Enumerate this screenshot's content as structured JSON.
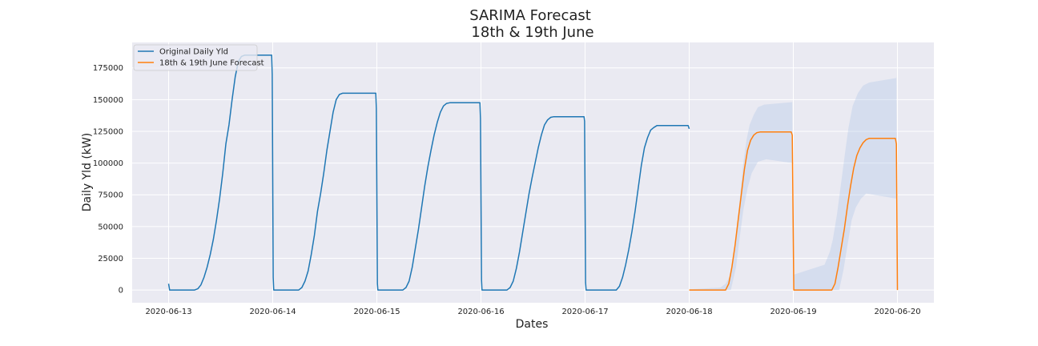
{
  "chart_data": {
    "type": "line",
    "title": [
      "SARIMA Forecast",
      "18th & 19th June"
    ],
    "xlabel": "Dates",
    "ylabel": "Daily Yld (kW)",
    "x_range_days": [
      -0.35,
      7.35
    ],
    "ylim": [
      -10000,
      195000
    ],
    "grid": true,
    "legend_position": "top-left",
    "x_ticks": [
      {
        "day": 0,
        "label": "2020-06-13"
      },
      {
        "day": 1,
        "label": "2020-06-14"
      },
      {
        "day": 2,
        "label": "2020-06-15"
      },
      {
        "day": 3,
        "label": "2020-06-16"
      },
      {
        "day": 4,
        "label": "2020-06-17"
      },
      {
        "day": 5,
        "label": "2020-06-18"
      },
      {
        "day": 6,
        "label": "2020-06-19"
      },
      {
        "day": 7,
        "label": "2020-06-20"
      }
    ],
    "y_ticks": [
      0,
      25000,
      50000,
      75000,
      100000,
      125000,
      150000,
      175000
    ],
    "y_tick_labels": [
      "0",
      "25000",
      "50000",
      "75000",
      "100000",
      "125000",
      "150000",
      "175000"
    ],
    "series": [
      {
        "name": "Original Daily Yld",
        "color": "#1f77b4",
        "points": [
          [
            0,
            5000
          ],
          [
            0.01,
            0
          ],
          [
            0.25,
            0
          ],
          [
            0.28,
            1000
          ],
          [
            0.31,
            4000
          ],
          [
            0.34,
            10000
          ],
          [
            0.37,
            18000
          ],
          [
            0.4,
            28000
          ],
          [
            0.43,
            40000
          ],
          [
            0.46,
            55000
          ],
          [
            0.49,
            72000
          ],
          [
            0.52,
            92000
          ],
          [
            0.55,
            115000
          ],
          [
            0.58,
            130000
          ],
          [
            0.61,
            150000
          ],
          [
            0.64,
            168000
          ],
          [
            0.67,
            180000
          ],
          [
            0.7,
            184000
          ],
          [
            0.73,
            185000
          ],
          [
            0.99,
            185000
          ],
          [
            0.995,
            170000
          ],
          [
            1.005,
            10000
          ],
          [
            1.01,
            0
          ],
          [
            1.25,
            0
          ],
          [
            1.28,
            2000
          ],
          [
            1.31,
            7000
          ],
          [
            1.34,
            15000
          ],
          [
            1.37,
            28000
          ],
          [
            1.4,
            43000
          ],
          [
            1.43,
            62000
          ],
          [
            1.46,
            76000
          ],
          [
            1.49,
            92000
          ],
          [
            1.52,
            110000
          ],
          [
            1.55,
            125000
          ],
          [
            1.58,
            140000
          ],
          [
            1.61,
            150000
          ],
          [
            1.64,
            154000
          ],
          [
            1.67,
            155000
          ],
          [
            1.99,
            155000
          ],
          [
            1.995,
            143000
          ],
          [
            2.005,
            5000
          ],
          [
            2.01,
            0
          ],
          [
            2.25,
            0
          ],
          [
            2.28,
            2000
          ],
          [
            2.31,
            7000
          ],
          [
            2.34,
            18000
          ],
          [
            2.37,
            33000
          ],
          [
            2.4,
            48000
          ],
          [
            2.43,
            65000
          ],
          [
            2.46,
            82000
          ],
          [
            2.49,
            97000
          ],
          [
            2.52,
            110000
          ],
          [
            2.55,
            122000
          ],
          [
            2.58,
            132000
          ],
          [
            2.61,
            140000
          ],
          [
            2.64,
            145000
          ],
          [
            2.67,
            147000
          ],
          [
            2.7,
            147500
          ],
          [
            2.99,
            147500
          ],
          [
            2.995,
            135000
          ],
          [
            3.005,
            8000
          ],
          [
            3.01,
            0
          ],
          [
            3.25,
            0
          ],
          [
            3.28,
            2000
          ],
          [
            3.31,
            7000
          ],
          [
            3.34,
            17000
          ],
          [
            3.37,
            30000
          ],
          [
            3.4,
            45000
          ],
          [
            3.43,
            60000
          ],
          [
            3.46,
            75000
          ],
          [
            3.49,
            88000
          ],
          [
            3.52,
            100000
          ],
          [
            3.55,
            112000
          ],
          [
            3.58,
            122000
          ],
          [
            3.61,
            130000
          ],
          [
            3.64,
            134000
          ],
          [
            3.67,
            136000
          ],
          [
            3.7,
            136500
          ],
          [
            3.99,
            136500
          ],
          [
            3.995,
            133000
          ],
          [
            4.005,
            6000
          ],
          [
            4.01,
            0
          ],
          [
            4.3,
            0
          ],
          [
            4.33,
            3000
          ],
          [
            4.36,
            10000
          ],
          [
            4.39,
            20000
          ],
          [
            4.42,
            32000
          ],
          [
            4.45,
            46000
          ],
          [
            4.48,
            62000
          ],
          [
            4.51,
            80000
          ],
          [
            4.54,
            98000
          ],
          [
            4.57,
            112000
          ],
          [
            4.6,
            120000
          ],
          [
            4.63,
            126000
          ],
          [
            4.66,
            128000
          ],
          [
            4.69,
            129500
          ],
          [
            4.99,
            129500
          ],
          [
            5.0,
            127000
          ]
        ]
      },
      {
        "name": "18th & 19th June Forecast",
        "color": "#ff7f0e",
        "points": [
          [
            5.0,
            0
          ],
          [
            5.35,
            0
          ],
          [
            5.38,
            5000
          ],
          [
            5.41,
            18000
          ],
          [
            5.44,
            35000
          ],
          [
            5.47,
            55000
          ],
          [
            5.5,
            75000
          ],
          [
            5.53,
            95000
          ],
          [
            5.56,
            110000
          ],
          [
            5.59,
            118000
          ],
          [
            5.62,
            122000
          ],
          [
            5.65,
            124000
          ],
          [
            5.68,
            124500
          ],
          [
            5.98,
            124500
          ],
          [
            5.99,
            122000
          ],
          [
            6.005,
            0
          ],
          [
            6.37,
            0
          ],
          [
            6.4,
            5000
          ],
          [
            6.43,
            18000
          ],
          [
            6.46,
            33000
          ],
          [
            6.49,
            48000
          ],
          [
            6.52,
            66000
          ],
          [
            6.55,
            82000
          ],
          [
            6.58,
            96000
          ],
          [
            6.61,
            106000
          ],
          [
            6.64,
            112000
          ],
          [
            6.67,
            116000
          ],
          [
            6.7,
            118500
          ],
          [
            6.73,
            119500
          ],
          [
            6.98,
            119500
          ],
          [
            6.99,
            115000
          ],
          [
            7.0,
            0
          ]
        ]
      }
    ],
    "confidence_band": {
      "color": "#aec7e8",
      "upper": [
        [
          5.0,
          500
        ],
        [
          5.3,
          2000
        ],
        [
          5.35,
          5000
        ],
        [
          5.4,
          12000
        ],
        [
          5.43,
          30000
        ],
        [
          5.46,
          52000
        ],
        [
          5.49,
          75000
        ],
        [
          5.52,
          100000
        ],
        [
          5.55,
          118000
        ],
        [
          5.58,
          130000
        ],
        [
          5.62,
          138000
        ],
        [
          5.66,
          144000
        ],
        [
          5.72,
          146000
        ],
        [
          5.99,
          148000
        ],
        [
          6.0,
          12000
        ],
        [
          6.3,
          20000
        ],
        [
          6.35,
          30000
        ],
        [
          6.38,
          40000
        ],
        [
          6.42,
          60000
        ],
        [
          6.46,
          85000
        ],
        [
          6.5,
          110000
        ],
        [
          6.53,
          128000
        ],
        [
          6.57,
          145000
        ],
        [
          6.62,
          155000
        ],
        [
          6.67,
          161000
        ],
        [
          6.73,
          163500
        ],
        [
          6.99,
          167000
        ],
        [
          7.0,
          0
        ]
      ],
      "lower": [
        [
          5.0,
          0
        ],
        [
          5.3,
          0
        ],
        [
          5.4,
          0
        ],
        [
          5.45,
          18000
        ],
        [
          5.48,
          38000
        ],
        [
          5.52,
          63000
        ],
        [
          5.56,
          80000
        ],
        [
          5.6,
          92000
        ],
        [
          5.66,
          101000
        ],
        [
          5.74,
          103000
        ],
        [
          5.99,
          100000
        ],
        [
          6.0,
          0
        ],
        [
          6.3,
          0
        ],
        [
          6.44,
          0
        ],
        [
          6.48,
          15000
        ],
        [
          6.52,
          35000
        ],
        [
          6.56,
          55000
        ],
        [
          6.6,
          65000
        ],
        [
          6.65,
          72000
        ],
        [
          6.7,
          76000
        ],
        [
          6.99,
          72000
        ],
        [
          7.0,
          0
        ]
      ]
    }
  }
}
